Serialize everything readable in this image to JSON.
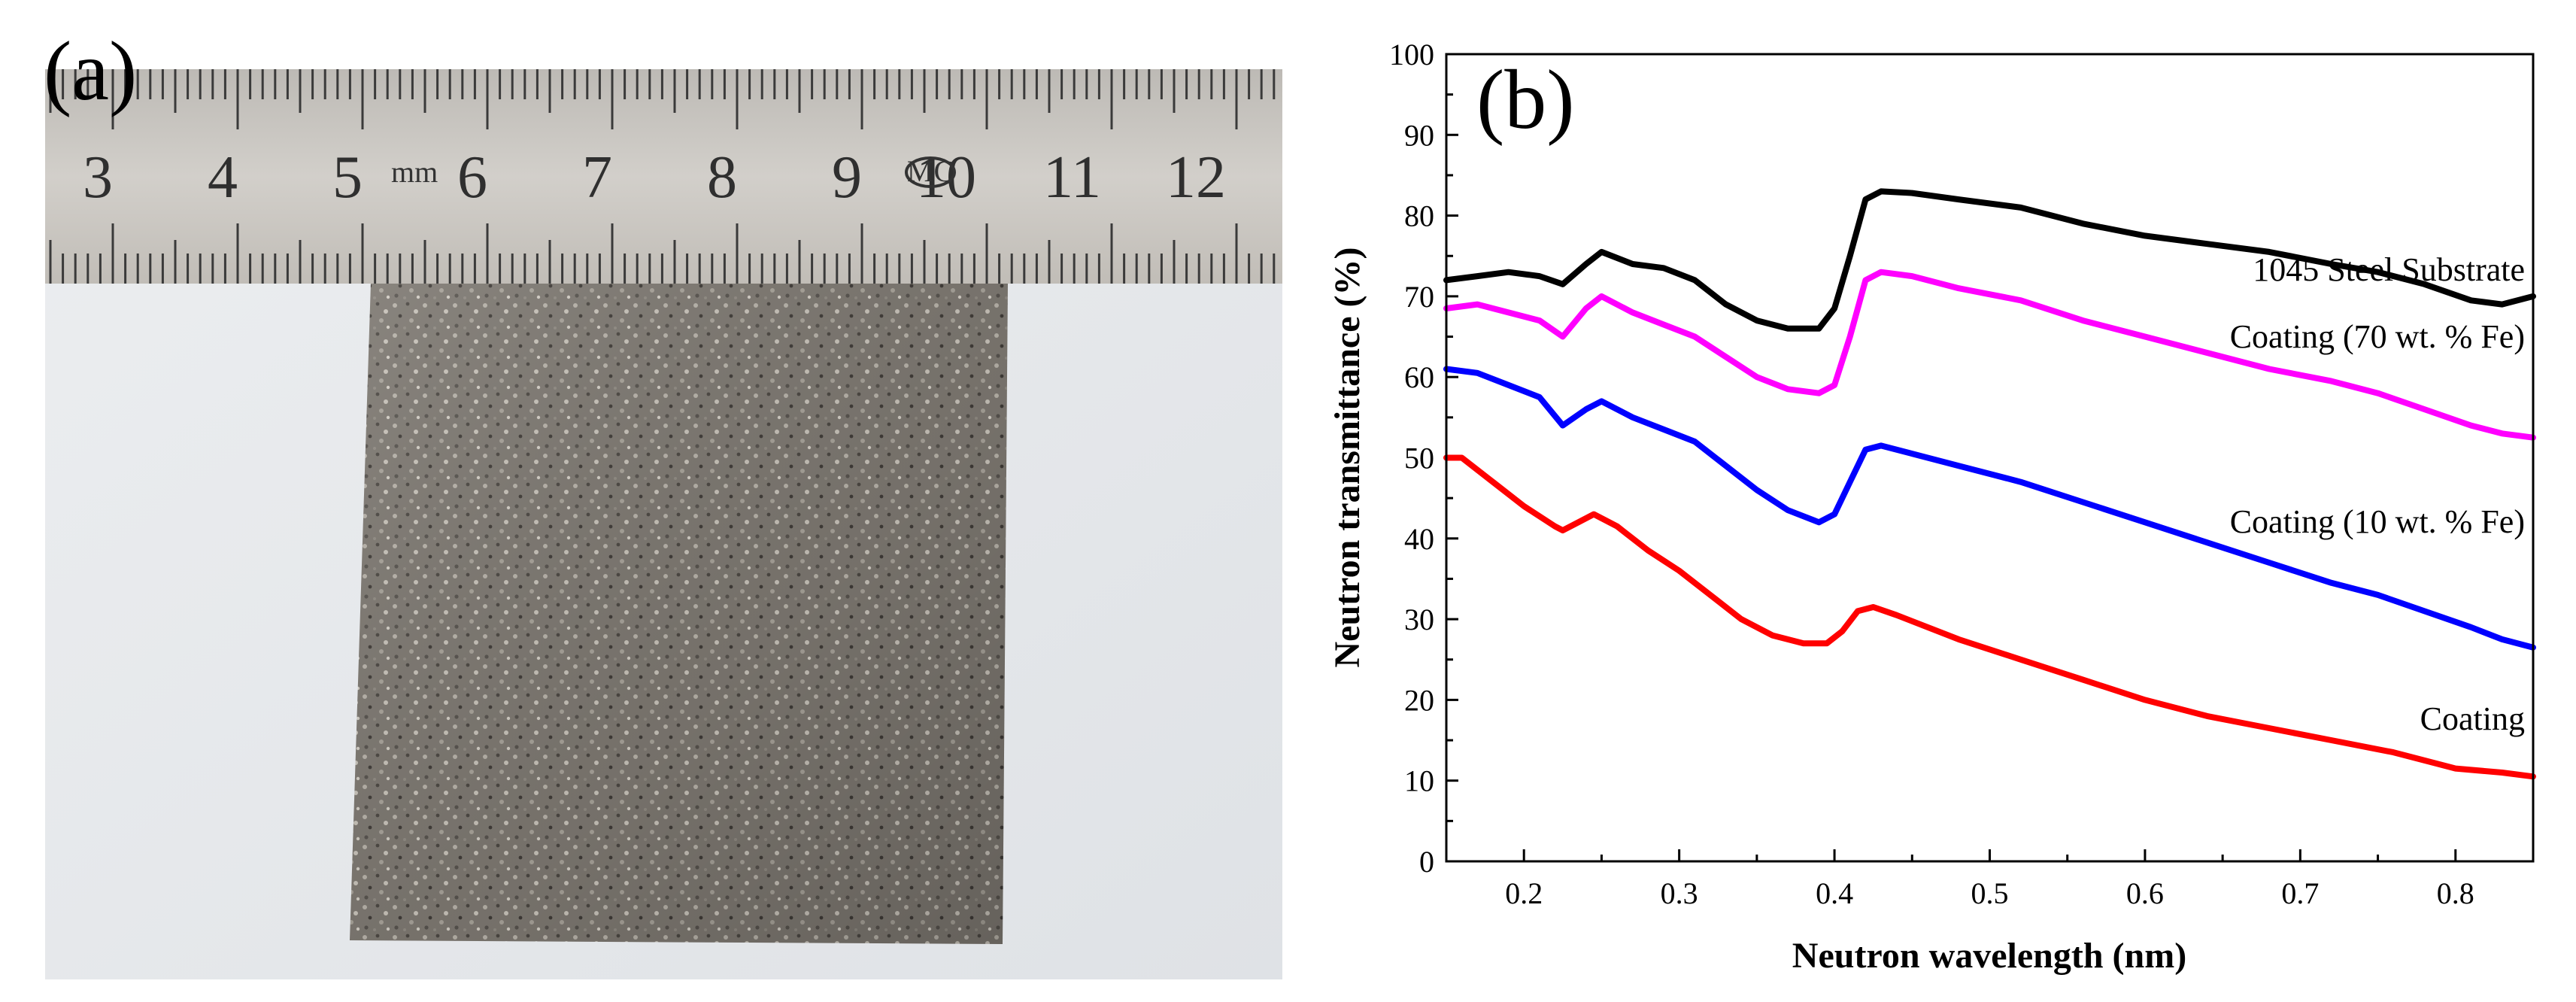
{
  "figure": {
    "panel_a_label": "(a)",
    "panel_b_label": "(b)"
  },
  "photo": {
    "ruler_numbers": [
      "3",
      "4",
      "5",
      "6",
      "7",
      "8",
      "9",
      "10",
      "11",
      "12"
    ],
    "ruler_unit": "mm",
    "ruler_logo": "MC"
  },
  "colors": {
    "series_1045": "#000000",
    "series_70fe": "#ff00ff",
    "series_10fe": "#0000ff",
    "series_coating": "#ff0000"
  },
  "chart_data": {
    "type": "line",
    "title": "",
    "xlabel": "Neutron wavelength (nm)",
    "ylabel": "Neutron transmittance (%)",
    "xlim": [
      0.15,
      0.85
    ],
    "ylim": [
      0,
      100
    ],
    "xticks": [
      0.2,
      0.3,
      0.4,
      0.5,
      0.6,
      0.7,
      0.8
    ],
    "xtick_labels": [
      "0.2",
      "0.3",
      "0.4",
      "0.5",
      "0.6",
      "0.7",
      "0.8"
    ],
    "yticks": [
      0,
      10,
      20,
      30,
      40,
      50,
      60,
      70,
      80,
      90,
      100
    ],
    "ytick_labels": [
      "0",
      "10",
      "20",
      "30",
      "40",
      "50",
      "60",
      "70",
      "80",
      "90",
      "100"
    ],
    "grid": false,
    "series": [
      {
        "name": "1045 Steel Substrate",
        "color": "#000000",
        "x": [
          0.15,
          0.17,
          0.19,
          0.21,
          0.225,
          0.24,
          0.25,
          0.27,
          0.29,
          0.31,
          0.33,
          0.35,
          0.37,
          0.39,
          0.4,
          0.41,
          0.42,
          0.43,
          0.45,
          0.48,
          0.52,
          0.56,
          0.6,
          0.64,
          0.68,
          0.72,
          0.75,
          0.78,
          0.81,
          0.83,
          0.85
        ],
        "values": [
          72,
          72.5,
          73,
          72.5,
          71.5,
          74,
          75.5,
          74,
          73.5,
          72,
          69,
          67,
          66,
          66,
          68.5,
          75,
          82,
          83,
          82.8,
          82,
          81,
          79,
          77.5,
          76.5,
          75.5,
          74,
          73,
          71.5,
          69.5,
          69,
          70
        ]
      },
      {
        "name": "Coating (70 wt. % Fe)",
        "color": "#ff00ff",
        "x": [
          0.15,
          0.17,
          0.19,
          0.21,
          0.225,
          0.24,
          0.25,
          0.27,
          0.29,
          0.31,
          0.33,
          0.35,
          0.37,
          0.39,
          0.4,
          0.41,
          0.42,
          0.43,
          0.45,
          0.48,
          0.52,
          0.56,
          0.6,
          0.64,
          0.68,
          0.72,
          0.75,
          0.78,
          0.81,
          0.83,
          0.85
        ],
        "values": [
          68.5,
          69,
          68,
          67,
          65,
          68.5,
          70,
          68,
          66.5,
          65,
          62.5,
          60,
          58.5,
          58,
          59,
          65,
          72,
          73,
          72.5,
          71,
          69.5,
          67,
          65,
          63,
          61,
          59.5,
          58,
          56,
          54,
          53,
          52.5
        ]
      },
      {
        "name": "Coating (10 wt. % Fe)",
        "color": "#0000ff",
        "x": [
          0.15,
          0.17,
          0.19,
          0.21,
          0.225,
          0.24,
          0.25,
          0.27,
          0.29,
          0.31,
          0.33,
          0.35,
          0.37,
          0.39,
          0.4,
          0.41,
          0.42,
          0.43,
          0.45,
          0.48,
          0.52,
          0.56,
          0.6,
          0.64,
          0.68,
          0.72,
          0.75,
          0.78,
          0.81,
          0.83,
          0.85
        ],
        "values": [
          61,
          60.5,
          59,
          57.5,
          54,
          56,
          57,
          55,
          53.5,
          52,
          49,
          46,
          43.5,
          42,
          43,
          47,
          51,
          51.5,
          50.5,
          49,
          47,
          44.5,
          42,
          39.5,
          37,
          34.5,
          33,
          31,
          29,
          27.5,
          26.5
        ]
      },
      {
        "name": "Coating",
        "color": "#ff0000",
        "x": [
          0.15,
          0.16,
          0.18,
          0.2,
          0.22,
          0.225,
          0.235,
          0.245,
          0.26,
          0.28,
          0.3,
          0.32,
          0.34,
          0.36,
          0.38,
          0.395,
          0.405,
          0.415,
          0.425,
          0.44,
          0.48,
          0.52,
          0.56,
          0.6,
          0.64,
          0.68,
          0.72,
          0.76,
          0.8,
          0.83,
          0.85
        ],
        "values": [
          50,
          50,
          47,
          44,
          41.5,
          41,
          42,
          43,
          41.5,
          38.5,
          36,
          33,
          30,
          28,
          27,
          27,
          28.5,
          31,
          31.5,
          30.5,
          27.5,
          25,
          22.5,
          20,
          18,
          16.5,
          15,
          13.5,
          11.5,
          11,
          10.5
        ]
      }
    ]
  }
}
